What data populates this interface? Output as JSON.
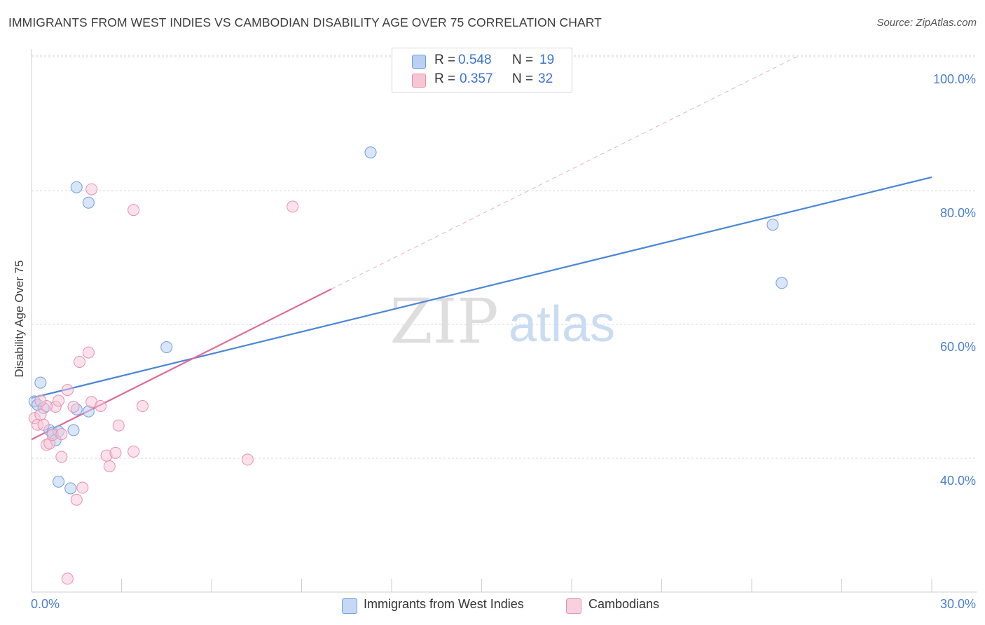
{
  "title": "IMMIGRANTS FROM WEST INDIES VS CAMBODIAN DISABILITY AGE OVER 75 CORRELATION CHART",
  "source": "Source: ZipAtlas.com",
  "watermark": {
    "zip": "ZIP",
    "atlas": "atlas"
  },
  "legend_top": {
    "rows": [
      {
        "r_label": "R =",
        "r_value": "0.548",
        "n_label": "N =",
        "n_value": "19",
        "color": "#6f9ee0",
        "fill": "#b9d0f3"
      },
      {
        "r_label": "R =",
        "r_value": "0.357",
        "n_label": "N =",
        "n_value": "32",
        "color": "#e890ad",
        "fill": "#f7c6d5"
      }
    ]
  },
  "legend_bottom": {
    "items": [
      {
        "label": "Immigrants from West Indies",
        "color": "#6f9ee0",
        "fill": "#c5d8f5"
      },
      {
        "label": "Cambodians",
        "color": "#e890ad",
        "fill": "#f9d0dd"
      }
    ]
  },
  "chart_data": {
    "type": "scatter",
    "title": "IMMIGRANTS FROM WEST INDIES VS CAMBODIAN DISABILITY AGE OVER 75 CORRELATION CHART",
    "xlabel": "",
    "ylabel": "Disability Age Over 75",
    "xlim": [
      0,
      30
    ],
    "ylim": [
      20,
      102
    ],
    "x_tick_labels": [
      "0.0%",
      "30.0%"
    ],
    "y_ticks": [
      40,
      60,
      80,
      100
    ],
    "y_tick_labels": [
      "40.0%",
      "60.0%",
      "80.0%",
      "100.0%"
    ],
    "series": [
      {
        "name": "Immigrants from West Indies",
        "color": "#4a86d8",
        "points": [
          [
            0.1,
            48.5
          ],
          [
            0.2,
            48.0
          ],
          [
            0.3,
            51.3
          ],
          [
            0.4,
            47.5
          ],
          [
            0.6,
            44.2
          ],
          [
            0.7,
            43.8
          ],
          [
            0.8,
            42.7
          ],
          [
            0.9,
            44.0
          ],
          [
            1.4,
            44.2
          ],
          [
            1.5,
            47.3
          ],
          [
            1.9,
            47.0
          ],
          [
            1.5,
            80.5
          ],
          [
            1.9,
            78.2
          ],
          [
            4.5,
            56.6
          ],
          [
            11.3,
            85.7
          ],
          [
            0.9,
            36.5
          ],
          [
            1.3,
            35.5
          ],
          [
            24.7,
            74.9
          ],
          [
            25.0,
            66.2
          ]
        ],
        "trend": {
          "x": [
            0,
            30
          ],
          "y": [
            49.0,
            82.0
          ],
          "style": "solid"
        }
      },
      {
        "name": "Cambodians",
        "color": "#e06b95",
        "points": [
          [
            0.1,
            46.0
          ],
          [
            0.2,
            45.0
          ],
          [
            0.3,
            46.5
          ],
          [
            0.4,
            45.0
          ],
          [
            0.5,
            42.0
          ],
          [
            0.6,
            42.2
          ],
          [
            0.7,
            43.5
          ],
          [
            0.8,
            47.7
          ],
          [
            0.9,
            48.6
          ],
          [
            1.0,
            40.2
          ],
          [
            1.2,
            50.2
          ],
          [
            1.4,
            47.7
          ],
          [
            1.6,
            54.4
          ],
          [
            1.7,
            35.6
          ],
          [
            1.9,
            55.8
          ],
          [
            2.0,
            48.4
          ],
          [
            2.3,
            47.8
          ],
          [
            2.5,
            40.4
          ],
          [
            2.6,
            38.8
          ],
          [
            2.8,
            40.8
          ],
          [
            2.9,
            44.9
          ],
          [
            3.4,
            41.0
          ],
          [
            3.7,
            47.8
          ],
          [
            2.0,
            80.2
          ],
          [
            3.4,
            77.1
          ],
          [
            7.2,
            39.8
          ],
          [
            8.7,
            77.6
          ],
          [
            1.5,
            33.8
          ],
          [
            1.2,
            22.0
          ],
          [
            1.0,
            43.6
          ],
          [
            0.5,
            47.8
          ],
          [
            0.3,
            48.6
          ]
        ],
        "trend": {
          "x": [
            0,
            10.0
          ],
          "y": [
            42.8,
            65.3
          ],
          "style": "solid",
          "extension": {
            "x": [
              10.0,
              25.5
            ],
            "y": [
              65.3,
              100.0
            ],
            "style": "dashed"
          }
        }
      }
    ]
  }
}
